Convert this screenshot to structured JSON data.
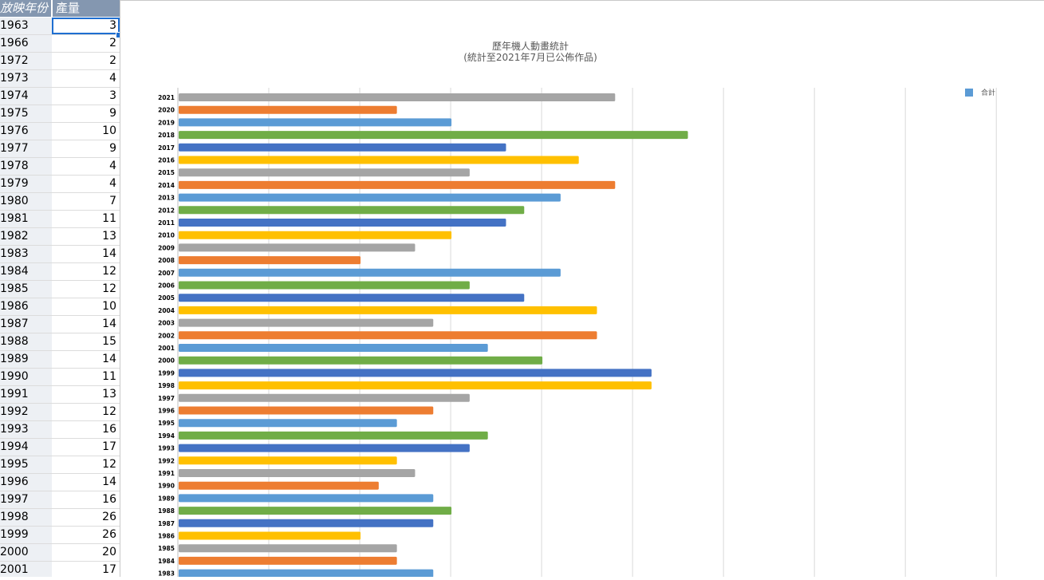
{
  "sheet": {
    "col_a_header": "放映年份",
    "col_b_header": "產量",
    "rows": [
      {
        "year": "1963",
        "value": "3"
      },
      {
        "year": "1966",
        "value": "2"
      },
      {
        "year": "1972",
        "value": "2"
      },
      {
        "year": "1973",
        "value": "4"
      },
      {
        "year": "1974",
        "value": "3"
      },
      {
        "year": "1975",
        "value": "9"
      },
      {
        "year": "1976",
        "value": "10"
      },
      {
        "year": "1977",
        "value": "9"
      },
      {
        "year": "1978",
        "value": "4"
      },
      {
        "year": "1979",
        "value": "4"
      },
      {
        "year": "1980",
        "value": "7"
      },
      {
        "year": "1981",
        "value": "11"
      },
      {
        "year": "1982",
        "value": "13"
      },
      {
        "year": "1983",
        "value": "14"
      },
      {
        "year": "1984",
        "value": "12"
      },
      {
        "year": "1985",
        "value": "12"
      },
      {
        "year": "1986",
        "value": "10"
      },
      {
        "year": "1987",
        "value": "14"
      },
      {
        "year": "1988",
        "value": "15"
      },
      {
        "year": "1989",
        "value": "14"
      },
      {
        "year": "1990",
        "value": "11"
      },
      {
        "year": "1991",
        "value": "13"
      },
      {
        "year": "1992",
        "value": "12"
      },
      {
        "year": "1993",
        "value": "16"
      },
      {
        "year": "1994",
        "value": "17"
      },
      {
        "year": "1995",
        "value": "12"
      },
      {
        "year": "1996",
        "value": "14"
      },
      {
        "year": "1997",
        "value": "16"
      },
      {
        "year": "1998",
        "value": "26"
      },
      {
        "year": "1999",
        "value": "26"
      },
      {
        "year": "2000",
        "value": "20"
      },
      {
        "year": "2001",
        "value": "17"
      }
    ]
  },
  "chart_data": {
    "type": "bar",
    "orientation": "horizontal",
    "title_line1": "歷年機人動畫統計",
    "title_line2": "(統計至2021年7月已公佈作品)",
    "legend": "合計",
    "legend_placement": "top-right",
    "grid": true,
    "xlim": [
      0,
      46
    ],
    "categories": [
      "2021",
      "2020",
      "2019",
      "2018",
      "2017",
      "2016",
      "2015",
      "2014",
      "2013",
      "2012",
      "2011",
      "2010",
      "2009",
      "2008",
      "2007",
      "2006",
      "2005",
      "2004",
      "2003",
      "2002",
      "2001",
      "2000",
      "1999",
      "1998",
      "1997",
      "1996",
      "1995",
      "1994",
      "1993",
      "1992",
      "1991",
      "1990",
      "1989",
      "1988",
      "1987",
      "1986",
      "1985",
      "1984",
      "1983"
    ],
    "values": [
      24,
      12,
      15,
      28,
      18,
      22,
      16,
      24,
      21,
      19,
      18,
      15,
      13,
      10,
      21,
      16,
      19,
      23,
      14,
      23,
      17,
      20,
      26,
      26,
      16,
      14,
      12,
      17,
      16,
      12,
      13,
      11,
      14,
      15,
      14,
      10,
      12,
      12,
      14
    ],
    "colors": [
      "#a5a5a5",
      "#ed7d31",
      "#5b9bd5",
      "#70ad47",
      "#4472c4",
      "#ffc000"
    ],
    "legend_color": "#5b9bd5"
  }
}
